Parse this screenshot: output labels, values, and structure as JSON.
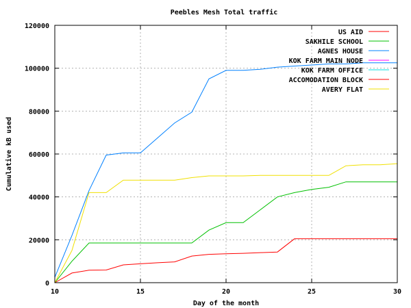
{
  "chart_data": {
    "type": "line",
    "title": "Peebles Mesh Total traffic",
    "xlabel": "Day of the month",
    "ylabel": "Cumulative kB used",
    "xlim": [
      10,
      30
    ],
    "ylim": [
      0,
      120000
    ],
    "xticks": [
      10,
      15,
      20,
      25,
      30
    ],
    "yticks": [
      0,
      20000,
      40000,
      60000,
      80000,
      100000,
      120000
    ],
    "grid": true,
    "legend_position": "top-right",
    "series": [
      {
        "name": "US AID",
        "color": "#ff0000",
        "x": [
          10,
          11,
          12,
          13,
          14,
          15,
          16,
          17,
          18,
          19,
          20,
          21,
          22,
          23,
          24,
          25,
          26,
          27,
          28,
          29,
          30
        ],
        "y": [
          0,
          4500,
          5800,
          5900,
          8300,
          8800,
          9300,
          9700,
          12400,
          13200,
          13500,
          13700,
          14000,
          14300,
          20500,
          20500,
          20500,
          20500,
          20500,
          20500,
          20500
        ]
      },
      {
        "name": "SAKHILE SCHOOL",
        "color": "#00c000",
        "x": [
          10,
          11,
          12,
          13,
          14,
          15,
          16,
          17,
          18,
          19,
          20,
          21,
          22,
          23,
          24,
          25,
          26,
          27,
          28,
          29,
          30
        ],
        "y": [
          0,
          10000,
          18500,
          18500,
          18500,
          18500,
          18500,
          18500,
          18500,
          24500,
          28000,
          28000,
          34000,
          40000,
          42000,
          43500,
          44500,
          47000,
          47000,
          47000,
          47000
        ]
      },
      {
        "name": "AGNES HOUSE",
        "color": "#0080ff",
        "x": [
          10,
          11,
          12,
          13,
          14,
          15,
          16,
          17,
          18,
          19,
          20,
          21,
          22,
          23,
          24,
          25,
          26,
          27,
          28,
          29,
          30
        ],
        "y": [
          2500,
          22000,
          43000,
          59500,
          60500,
          60500,
          67500,
          74500,
          79500,
          95000,
          99000,
          99000,
          99500,
          100500,
          101000,
          101500,
          102000,
          102000,
          102500,
          102500,
          102500
        ]
      },
      {
        "name": "KOK FARM MAIN NODE",
        "color": "#ff00ff",
        "x": [],
        "y": []
      },
      {
        "name": "KOK FARM OFFICE",
        "color": "#00e0e0",
        "x": [],
        "y": []
      },
      {
        "name": "ACCOMODATION BLOCK",
        "color": "#ff0000",
        "x": [],
        "y": []
      },
      {
        "name": "AVERY FLAT",
        "color": "#f0e000",
        "x": [
          10,
          11,
          12,
          13,
          14,
          15,
          16,
          17,
          18,
          19,
          20,
          21,
          22,
          23,
          24,
          25,
          26,
          27,
          28,
          29,
          30
        ],
        "y": [
          0,
          15000,
          42000,
          42000,
          47800,
          47800,
          47800,
          47800,
          49000,
          49800,
          49800,
          49800,
          50000,
          50000,
          50000,
          50000,
          50000,
          54500,
          55000,
          55000,
          55500
        ]
      }
    ]
  }
}
